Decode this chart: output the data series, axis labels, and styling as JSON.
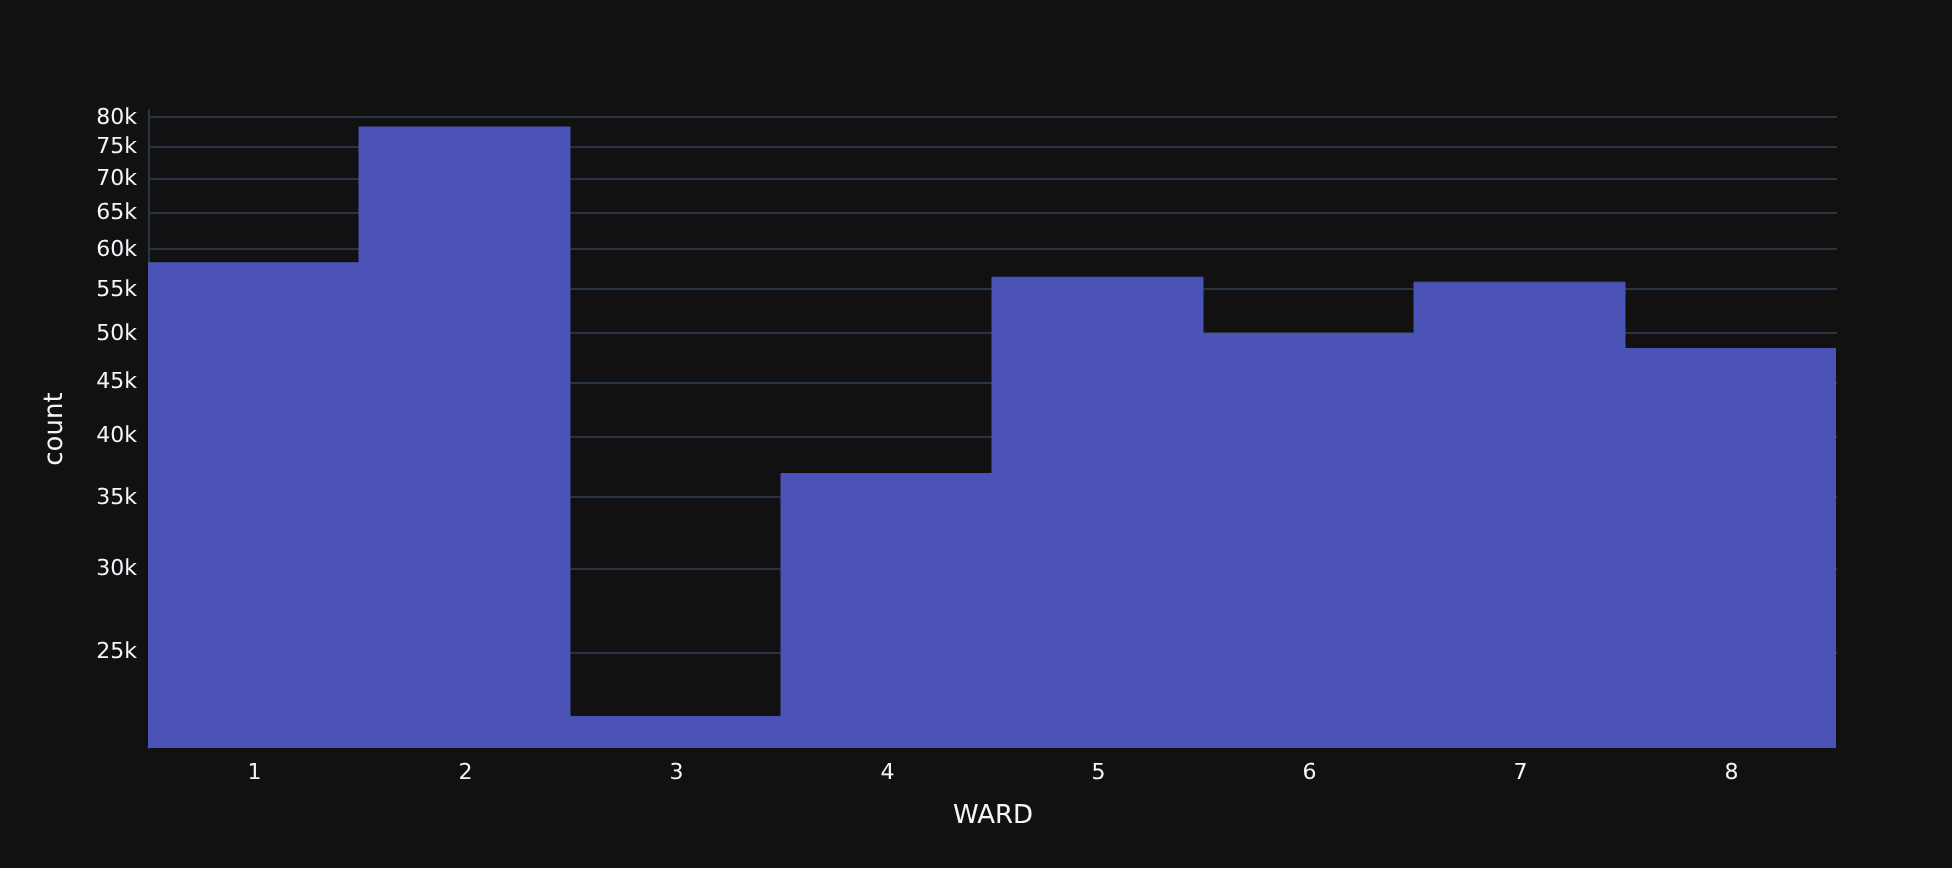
{
  "chart_data": {
    "type": "histogram",
    "xlabel": "WARD",
    "ylabel": "count",
    "bins": [
      0.5,
      1.5,
      2.5,
      3.5,
      4.5,
      5.5,
      6.5,
      7.5,
      8.5
    ],
    "values": [
      58200,
      78200,
      21700,
      36800,
      56400,
      49900,
      55800,
      48300
    ],
    "color": "#4b54b6",
    "xlim": [
      0.5,
      8.5
    ],
    "xticks": [
      1,
      2,
      3,
      4,
      5,
      6,
      7,
      8
    ],
    "log": "y",
    "ylim": [
      20260,
      81500
    ],
    "yticks": [
      {
        "value": 25000,
        "label": "25k"
      },
      {
        "value": 30000,
        "label": "30k"
      },
      {
        "value": 35000,
        "label": "35k"
      },
      {
        "value": 40000,
        "label": "40k"
      },
      {
        "value": 45000,
        "label": "45k"
      },
      {
        "value": 50000,
        "label": "50k"
      },
      {
        "value": 55000,
        "label": "55k"
      },
      {
        "value": 60000,
        "label": "60k"
      },
      {
        "value": 65000,
        "label": "65k"
      },
      {
        "value": 70000,
        "label": "70k"
      },
      {
        "value": 75000,
        "label": "75k"
      },
      {
        "value": 80000,
        "label": "80k"
      }
    ],
    "grid": "y"
  }
}
